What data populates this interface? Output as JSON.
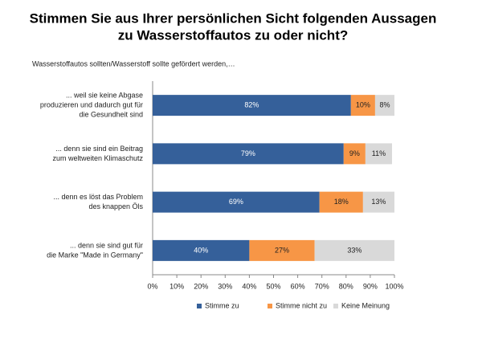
{
  "chart_data": {
    "type": "stacked-bar-horizontal",
    "title": [
      "Stimmen Sie aus Ihrer persönlichen Sicht folgenden Aussagen",
      "zu Wasserstoffautos zu oder nicht?"
    ],
    "subtitle": "Wasserstoffautos sollten/Wasserstoff sollte gefördert werden,…",
    "categories": [
      [
        "... weil sie keine Abgase",
        "produzieren und dadurch gut für",
        "die Gesundheit sind"
      ],
      [
        "... denn sie sind ein Beitrag",
        "zum weltweiten Klimaschutz"
      ],
      [
        "... denn es löst das Problem",
        "des knappen Öls"
      ],
      [
        "... denn sie sind gut für",
        "die Marke \"Made in Germany\""
      ]
    ],
    "series": [
      {
        "name": "Stimme zu",
        "color": "#35609a",
        "values": [
          82,
          79,
          69,
          40
        ],
        "value_labels": [
          "82%",
          "79%",
          "69%",
          "40%"
        ]
      },
      {
        "name": "Stimme nicht zu",
        "color": "#f79646",
        "values": [
          10,
          9,
          18,
          27
        ],
        "value_labels": [
          "10%",
          "9%",
          "18%",
          "27%"
        ]
      },
      {
        "name": "Keine Meinung",
        "color": "#d9d9d9",
        "values": [
          8,
          11,
          13,
          33
        ],
        "value_labels": [
          "8%",
          "11%",
          "13%",
          "33%"
        ]
      }
    ],
    "xlim": [
      0,
      100
    ],
    "xticks": [
      {
        "value": 0,
        "label": "0%"
      },
      {
        "value": 10,
        "label": "10%"
      },
      {
        "value": 20,
        "label": "20%"
      },
      {
        "value": 30,
        "label": "30%"
      },
      {
        "value": 40,
        "label": "40%"
      },
      {
        "value": 50,
        "label": "50%"
      },
      {
        "value": 60,
        "label": "60%"
      },
      {
        "value": 70,
        "label": "70%"
      },
      {
        "value": 80,
        "label": "80%"
      },
      {
        "value": 90,
        "label": "90%"
      },
      {
        "value": 100,
        "label": "100%"
      }
    ],
    "legend": "bottom"
  }
}
